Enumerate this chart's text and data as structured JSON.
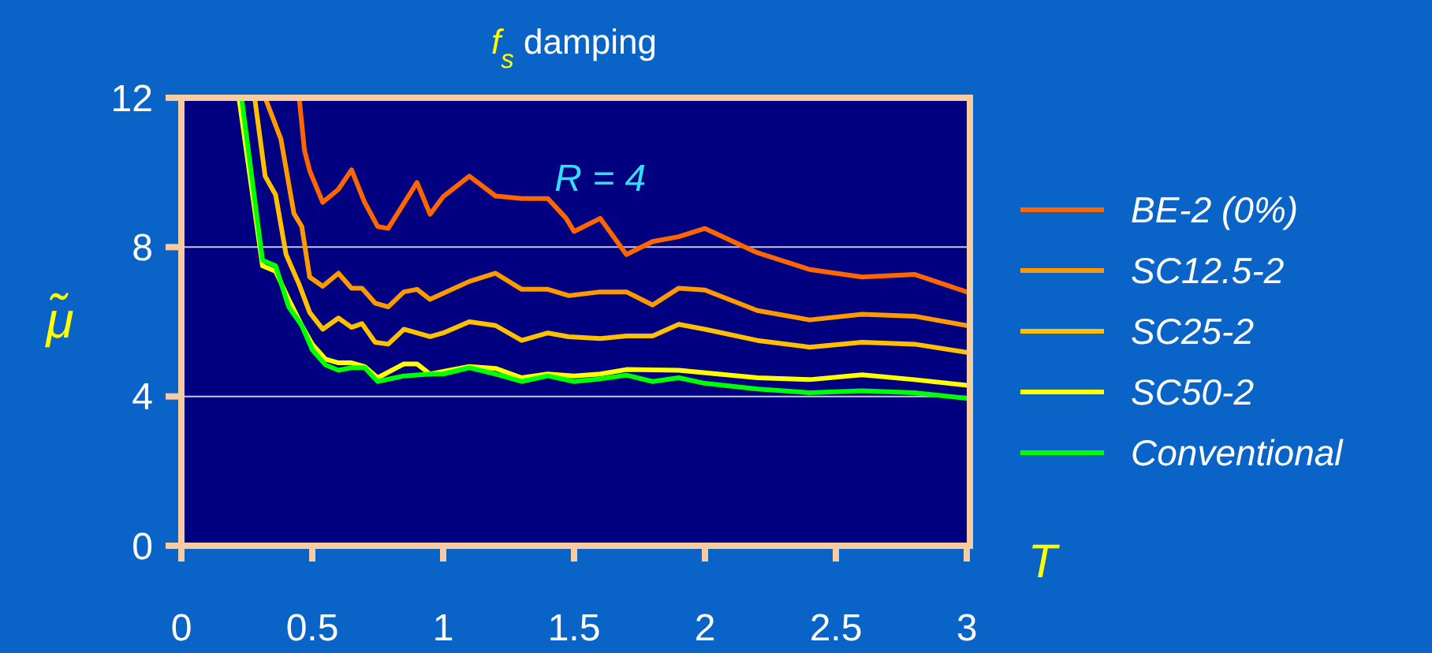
{
  "chart_data": {
    "type": "line",
    "title": "f$_{s}$ damping",
    "xlabel": "T",
    "ylabel": "μ̃",
    "annotations": [
      "R = 4"
    ],
    "xlim": [
      0,
      3
    ],
    "ylim": [
      0,
      12
    ],
    "xticks": [
      0,
      0.5,
      1,
      1.5,
      2,
      2.5,
      3
    ],
    "yticks": [
      0,
      4,
      8,
      12
    ],
    "grid": "y",
    "legend": "right",
    "line_style": "solid",
    "marker": "none",
    "series": [
      {
        "name": "BE-2 (0%)",
        "color": "#ff6600",
        "x": [
          0.45,
          0.47,
          0.49,
          0.54,
          0.6,
          0.65,
          0.7,
          0.75,
          0.79,
          0.9,
          0.95,
          1.0,
          1.1,
          1.2,
          1.3,
          1.4,
          1.47,
          1.5,
          1.6,
          1.7,
          1.8,
          1.9,
          2.0,
          2.2,
          2.4,
          2.6,
          2.8,
          3.0
        ],
        "values": [
          12,
          10.6,
          10.05,
          9.2,
          9.55,
          10.07,
          9.2,
          8.55,
          8.5,
          9.73,
          8.88,
          9.35,
          9.9,
          9.37,
          9.3,
          9.3,
          8.77,
          8.42,
          8.77,
          7.8,
          8.15,
          8.28,
          8.5,
          7.85,
          7.4,
          7.2,
          7.27,
          6.8
        ]
      },
      {
        "name": "SC12.5-2",
        "color": "#ff9900",
        "x": [
          0.32,
          0.38,
          0.43,
          0.46,
          0.49,
          0.54,
          0.6,
          0.65,
          0.69,
          0.74,
          0.79,
          0.85,
          0.9,
          0.95,
          1.1,
          1.2,
          1.3,
          1.4,
          1.48,
          1.6,
          1.7,
          1.8,
          1.9,
          2.0,
          2.2,
          2.4,
          2.6,
          2.8,
          3.0
        ],
        "values": [
          12,
          10.9,
          8.9,
          8.55,
          7.2,
          6.95,
          7.3,
          6.9,
          6.9,
          6.5,
          6.4,
          6.8,
          6.87,
          6.6,
          7.08,
          7.3,
          6.87,
          6.87,
          6.7,
          6.8,
          6.8,
          6.45,
          6.9,
          6.85,
          6.3,
          6.05,
          6.2,
          6.15,
          5.9
        ]
      },
      {
        "name": "SC25-2",
        "color": "#ffc000",
        "x": [
          0.28,
          0.32,
          0.36,
          0.4,
          0.45,
          0.49,
          0.54,
          0.6,
          0.65,
          0.69,
          0.74,
          0.79,
          0.85,
          0.95,
          1.0,
          1.1,
          1.2,
          1.3,
          1.4,
          1.48,
          1.6,
          1.7,
          1.8,
          1.9,
          2.0,
          2.2,
          2.4,
          2.6,
          2.8,
          3.0
        ],
        "values": [
          12,
          9.9,
          9.4,
          7.8,
          7.0,
          6.25,
          5.8,
          6.1,
          5.85,
          5.95,
          5.45,
          5.4,
          5.8,
          5.6,
          5.7,
          6.0,
          5.9,
          5.5,
          5.7,
          5.6,
          5.55,
          5.62,
          5.62,
          5.93,
          5.8,
          5.5,
          5.32,
          5.45,
          5.4,
          5.18
        ]
      },
      {
        "name": "SC50-2",
        "color": "#ffff00",
        "x": [
          0.22,
          0.31,
          0.36,
          0.41,
          0.46,
          0.5,
          0.55,
          0.6,
          0.65,
          0.7,
          0.75,
          0.85,
          0.9,
          0.95,
          1.1,
          1.2,
          1.3,
          1.4,
          1.5,
          1.6,
          1.7,
          1.9,
          2.2,
          2.4,
          2.6,
          2.8,
          3.0
        ],
        "values": [
          12,
          7.5,
          7.35,
          6.6,
          5.9,
          5.4,
          5.0,
          4.9,
          4.9,
          4.8,
          4.5,
          4.87,
          4.87,
          4.6,
          4.8,
          4.75,
          4.5,
          4.6,
          4.55,
          4.6,
          4.72,
          4.7,
          4.5,
          4.45,
          4.58,
          4.45,
          4.3
        ]
      },
      {
        "name": "Conventional",
        "color": "#00ff00",
        "x": [
          0.23,
          0.31,
          0.36,
          0.41,
          0.46,
          0.5,
          0.55,
          0.6,
          0.65,
          0.7,
          0.75,
          0.85,
          0.95,
          1.0,
          1.1,
          1.2,
          1.3,
          1.4,
          1.5,
          1.6,
          1.7,
          1.8,
          1.9,
          2.0,
          2.2,
          2.4,
          2.6,
          2.8,
          3.0
        ],
        "values": [
          12,
          7.65,
          7.5,
          6.4,
          5.9,
          5.25,
          4.85,
          4.7,
          4.77,
          4.77,
          4.4,
          4.55,
          4.6,
          4.6,
          4.77,
          4.6,
          4.4,
          4.55,
          4.4,
          4.47,
          4.57,
          4.4,
          4.5,
          4.35,
          4.2,
          4.1,
          4.15,
          4.1,
          3.95
        ]
      }
    ]
  }
}
